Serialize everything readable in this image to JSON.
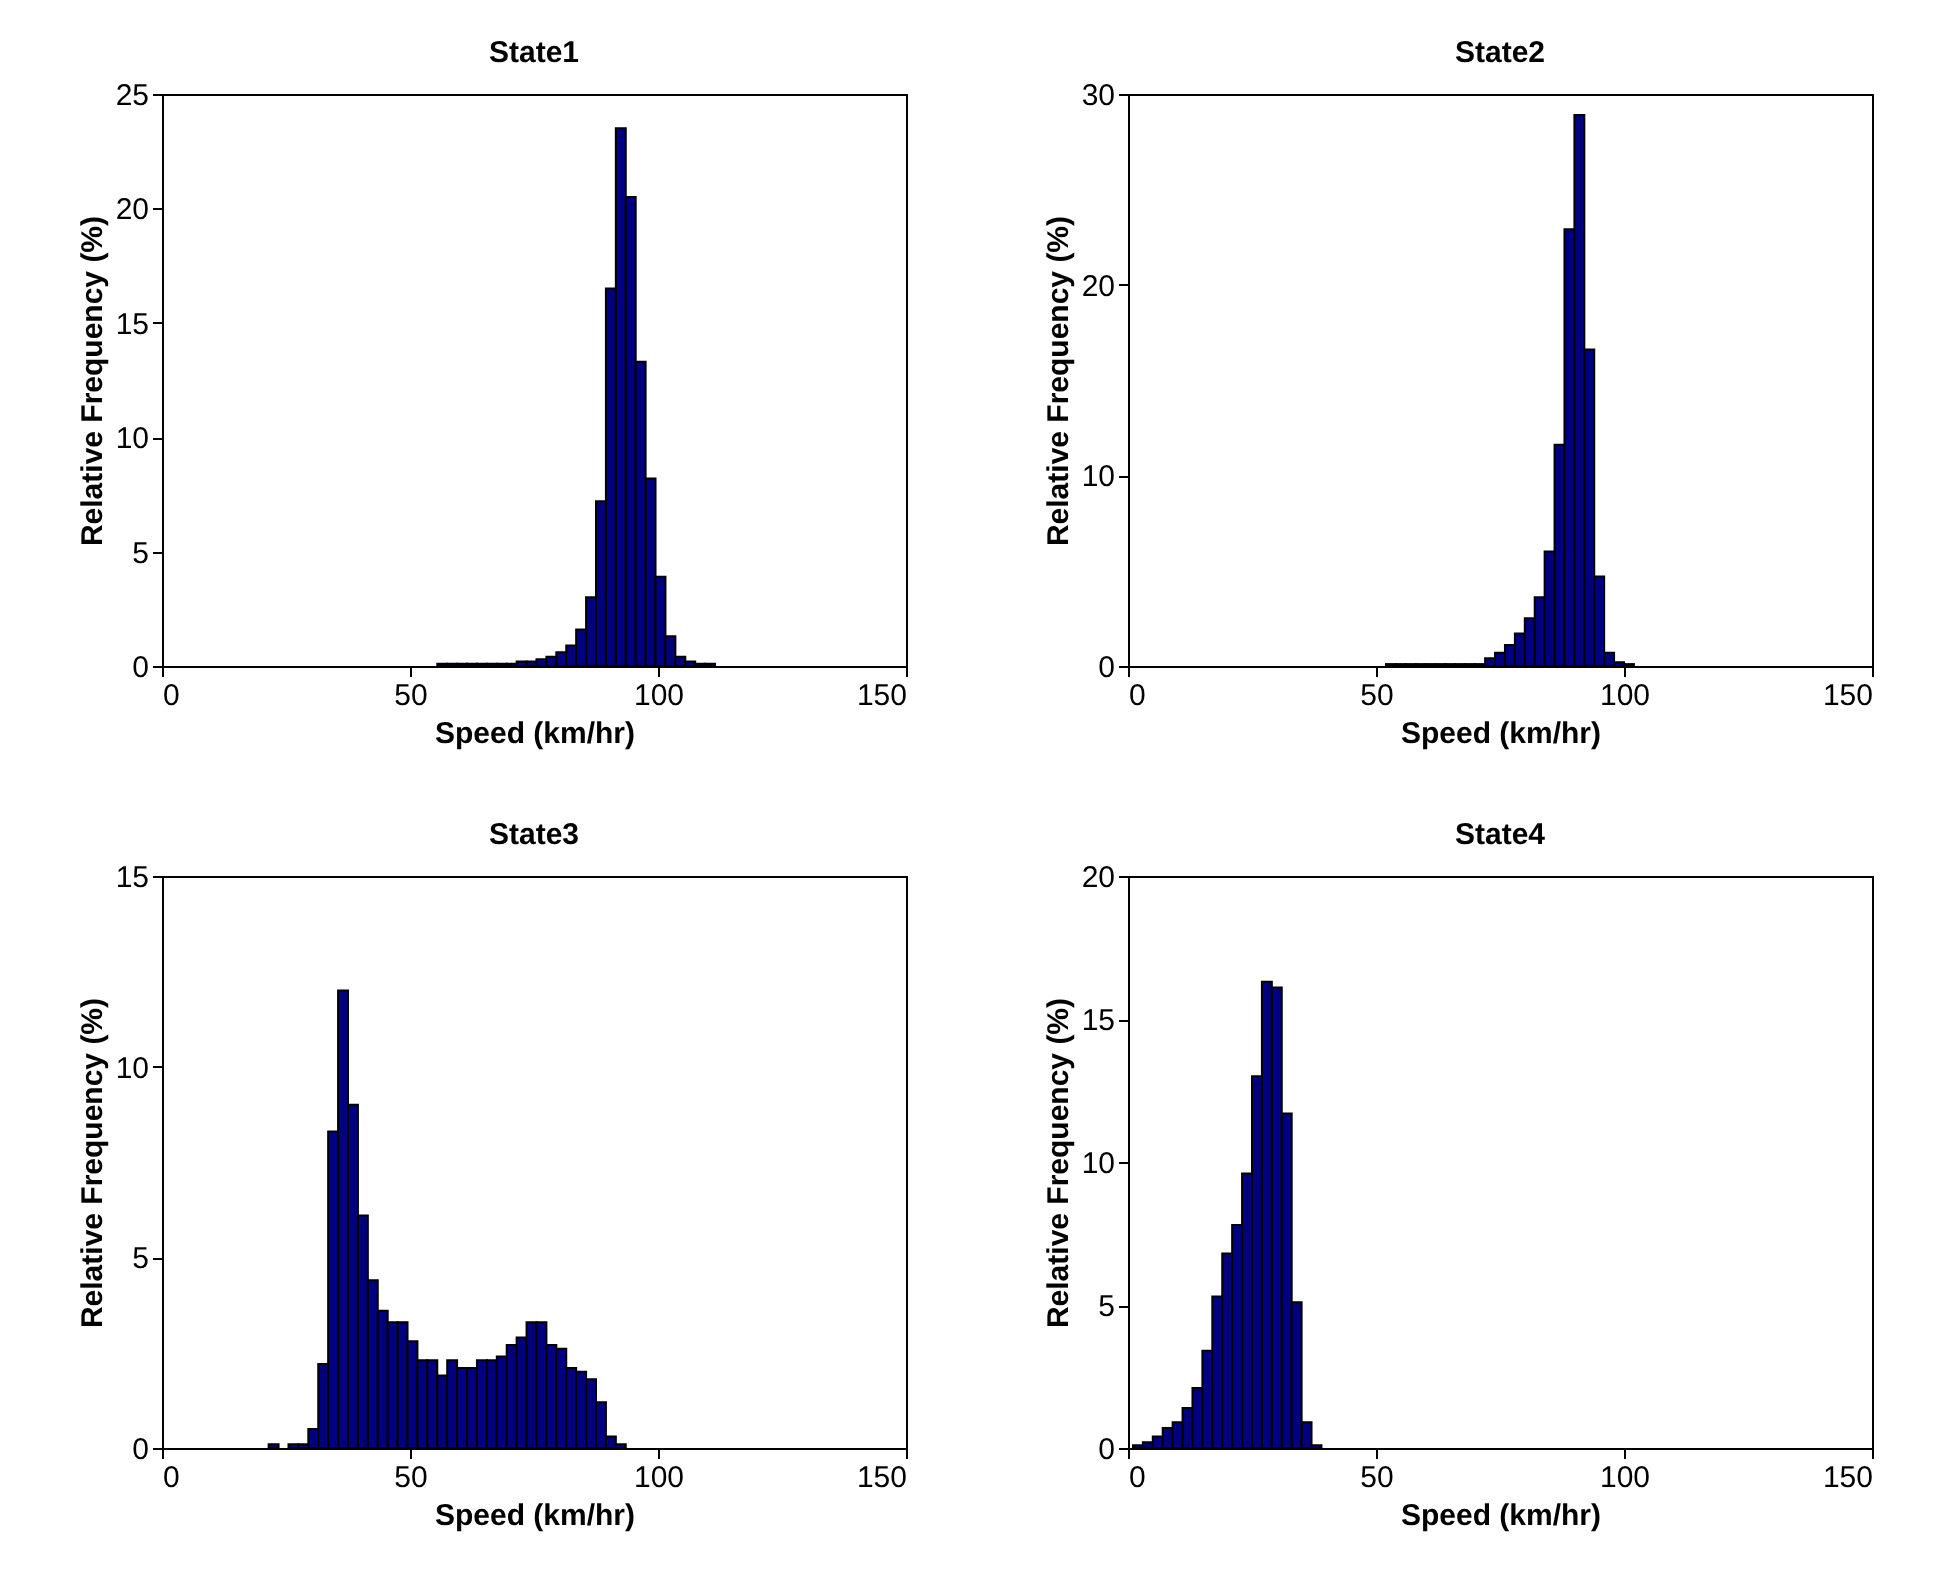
{
  "chart_data": [
    {
      "type": "histogram",
      "title": "State1",
      "xlabel": "Speed (km/hr)",
      "ylabel": "Relative Frequency (%)",
      "color": "#000080",
      "xlim": [
        0,
        150
      ],
      "xticks": [
        0,
        50,
        100,
        150
      ],
      "ylim": [
        0,
        25
      ],
      "yticks": [
        0,
        5,
        10,
        15,
        20,
        25
      ],
      "bins": [
        55.5,
        57.5,
        59.5,
        61.5,
        63.5,
        65.5,
        67.5,
        69.5,
        71.5,
        73.5,
        75.5,
        77.5,
        79.5,
        81.5,
        83.5,
        85.5,
        87.5,
        89.5,
        91.5,
        93.5,
        95.5,
        97.5,
        99.5,
        101.5,
        103.5,
        105.5,
        107.5,
        109.5,
        111.5
      ],
      "values": [
        0.1,
        0.1,
        0.1,
        0.1,
        0.1,
        0.1,
        0.1,
        0.1,
        0.2,
        0.2,
        0.3,
        0.4,
        0.6,
        0.9,
        1.6,
        3,
        7.2,
        16.5,
        23.5,
        20.5,
        13.3,
        8.2,
        3.9,
        1.3,
        0.4,
        0.2,
        0.1,
        0.1
      ]
    },
    {
      "type": "histogram",
      "title": "State2",
      "xlabel": "Speed (km/hr)",
      "ylabel": "Relative Frequency (%)",
      "color": "#000080",
      "xlim": [
        0,
        150
      ],
      "xticks": [
        0,
        50,
        100,
        150
      ],
      "ylim": [
        0,
        30
      ],
      "yticks": [
        0,
        10,
        20,
        30
      ],
      "bins": [
        52,
        54,
        56,
        58,
        60,
        62,
        64,
        66,
        68,
        70,
        72,
        74,
        76,
        78,
        80,
        82,
        84,
        86,
        88,
        90,
        92,
        94,
        96,
        98,
        100,
        102
      ],
      "values": [
        0.1,
        0.1,
        0.1,
        0.1,
        0.1,
        0.1,
        0.1,
        0.1,
        0.1,
        0.1,
        0.4,
        0.7,
        1.1,
        1.7,
        2.5,
        3.6,
        6,
        11.6,
        22.9,
        28.9,
        16.6,
        4.7,
        0.7,
        0.2,
        0.1
      ]
    },
    {
      "type": "histogram",
      "title": "State3",
      "xlabel": "Speed (km/hr)",
      "ylabel": "Relative Frequency (%)",
      "color": "#000080",
      "xlim": [
        0,
        150
      ],
      "xticks": [
        0,
        50,
        100,
        150
      ],
      "ylim": [
        0,
        15
      ],
      "yticks": [
        0,
        5,
        10,
        15
      ],
      "bins": [
        21.5,
        23.5,
        25.5,
        27.5,
        29.5,
        31.5,
        33.5,
        35.5,
        37.5,
        39.5,
        41.5,
        43.5,
        45.5,
        47.5,
        49.5,
        51.5,
        53.5,
        55.5,
        57.5,
        59.5,
        61.5,
        63.5,
        65.5,
        67.5,
        69.5,
        71.5,
        73.5,
        75.5,
        77.5,
        79.5,
        81.5,
        83.5,
        85.5,
        87.5,
        89.5,
        91.5,
        93.5
      ],
      "values": [
        0.1,
        null,
        0.1,
        0.1,
        0.5,
        2.2,
        8.3,
        12,
        9,
        6.1,
        4.4,
        3.6,
        3.3,
        3.3,
        2.8,
        2.3,
        2.3,
        1.9,
        2.3,
        2.1,
        2.1,
        2.3,
        2.3,
        2.4,
        2.7,
        2.9,
        3.3,
        3.3,
        2.7,
        2.6,
        2.1,
        2,
        1.8,
        1.2,
        0.3,
        0.1
      ]
    },
    {
      "type": "histogram",
      "title": "State4",
      "xlabel": "Speed (km/hr)",
      "ylabel": "Relative Frequency (%)",
      "color": "#000080",
      "xlim": [
        0,
        150
      ],
      "xticks": [
        0,
        50,
        100,
        150
      ],
      "ylim": [
        0,
        20
      ],
      "yticks": [
        0,
        5,
        10,
        15,
        20
      ],
      "bins": [
        1,
        3,
        5,
        7,
        9,
        11,
        13,
        15,
        17,
        19,
        21,
        23,
        25,
        27,
        29,
        31,
        33,
        35,
        37,
        39
      ],
      "values": [
        0.1,
        0.2,
        0.4,
        0.7,
        0.9,
        1.4,
        2.1,
        3.4,
        5.3,
        6.8,
        7.8,
        9.6,
        13,
        16.3,
        16.1,
        11.7,
        5.1,
        0.9,
        0.1
      ]
    }
  ]
}
